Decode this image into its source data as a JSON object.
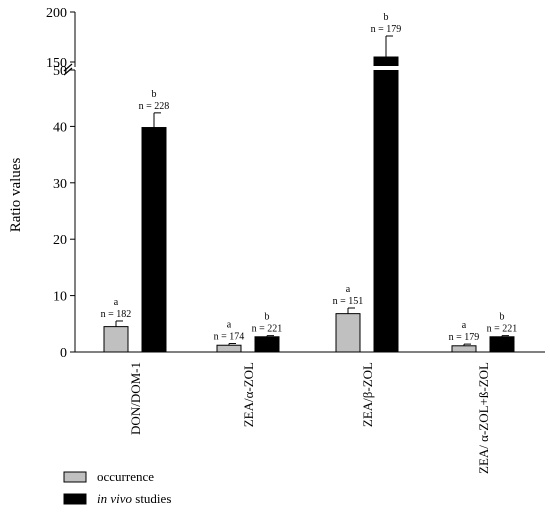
{
  "chart_data": {
    "type": "bar",
    "ylabel": "Ratio values",
    "categories": [
      "DON/DOM-1",
      "ZEA/α-ZOL",
      "ZEA/β-ZOL",
      "ZEA/ α-ZOL+ß-ZOL"
    ],
    "yticks_lower": [
      "0",
      "10",
      "20",
      "30",
      "40",
      "50"
    ],
    "yticks_upper": [
      "150",
      "200"
    ],
    "ylim_lower": [
      0,
      50
    ],
    "ylim_upper": [
      145,
      200
    ],
    "axis_break": true,
    "series": [
      {
        "name": "occurrence",
        "color": "#c0c0c0",
        "values": [
          4.5,
          1.2,
          6.8,
          1.1
        ],
        "errors": [
          1.0,
          0.3,
          1.0,
          0.3
        ],
        "letters": [
          "a",
          "a",
          "a",
          "a"
        ],
        "n_labels": [
          "n = 182",
          "n = 174",
          "n = 151",
          "n = 179"
        ]
      },
      {
        "name": "in vivo studies",
        "color": "#000000",
        "values": [
          39.8,
          2.7,
          155,
          2.7
        ],
        "errors": [
          2.6,
          0.2,
          21,
          0.2
        ],
        "letters": [
          "b",
          "b",
          "b",
          "b"
        ],
        "n_labels": [
          "n = 228",
          "n = 221",
          "n = 179",
          "n = 221"
        ]
      }
    ],
    "legend": {
      "position": "bottom-left",
      "entries": [
        "occurrence",
        "studies"
      ],
      "italic_prefix": "in vivo"
    }
  }
}
